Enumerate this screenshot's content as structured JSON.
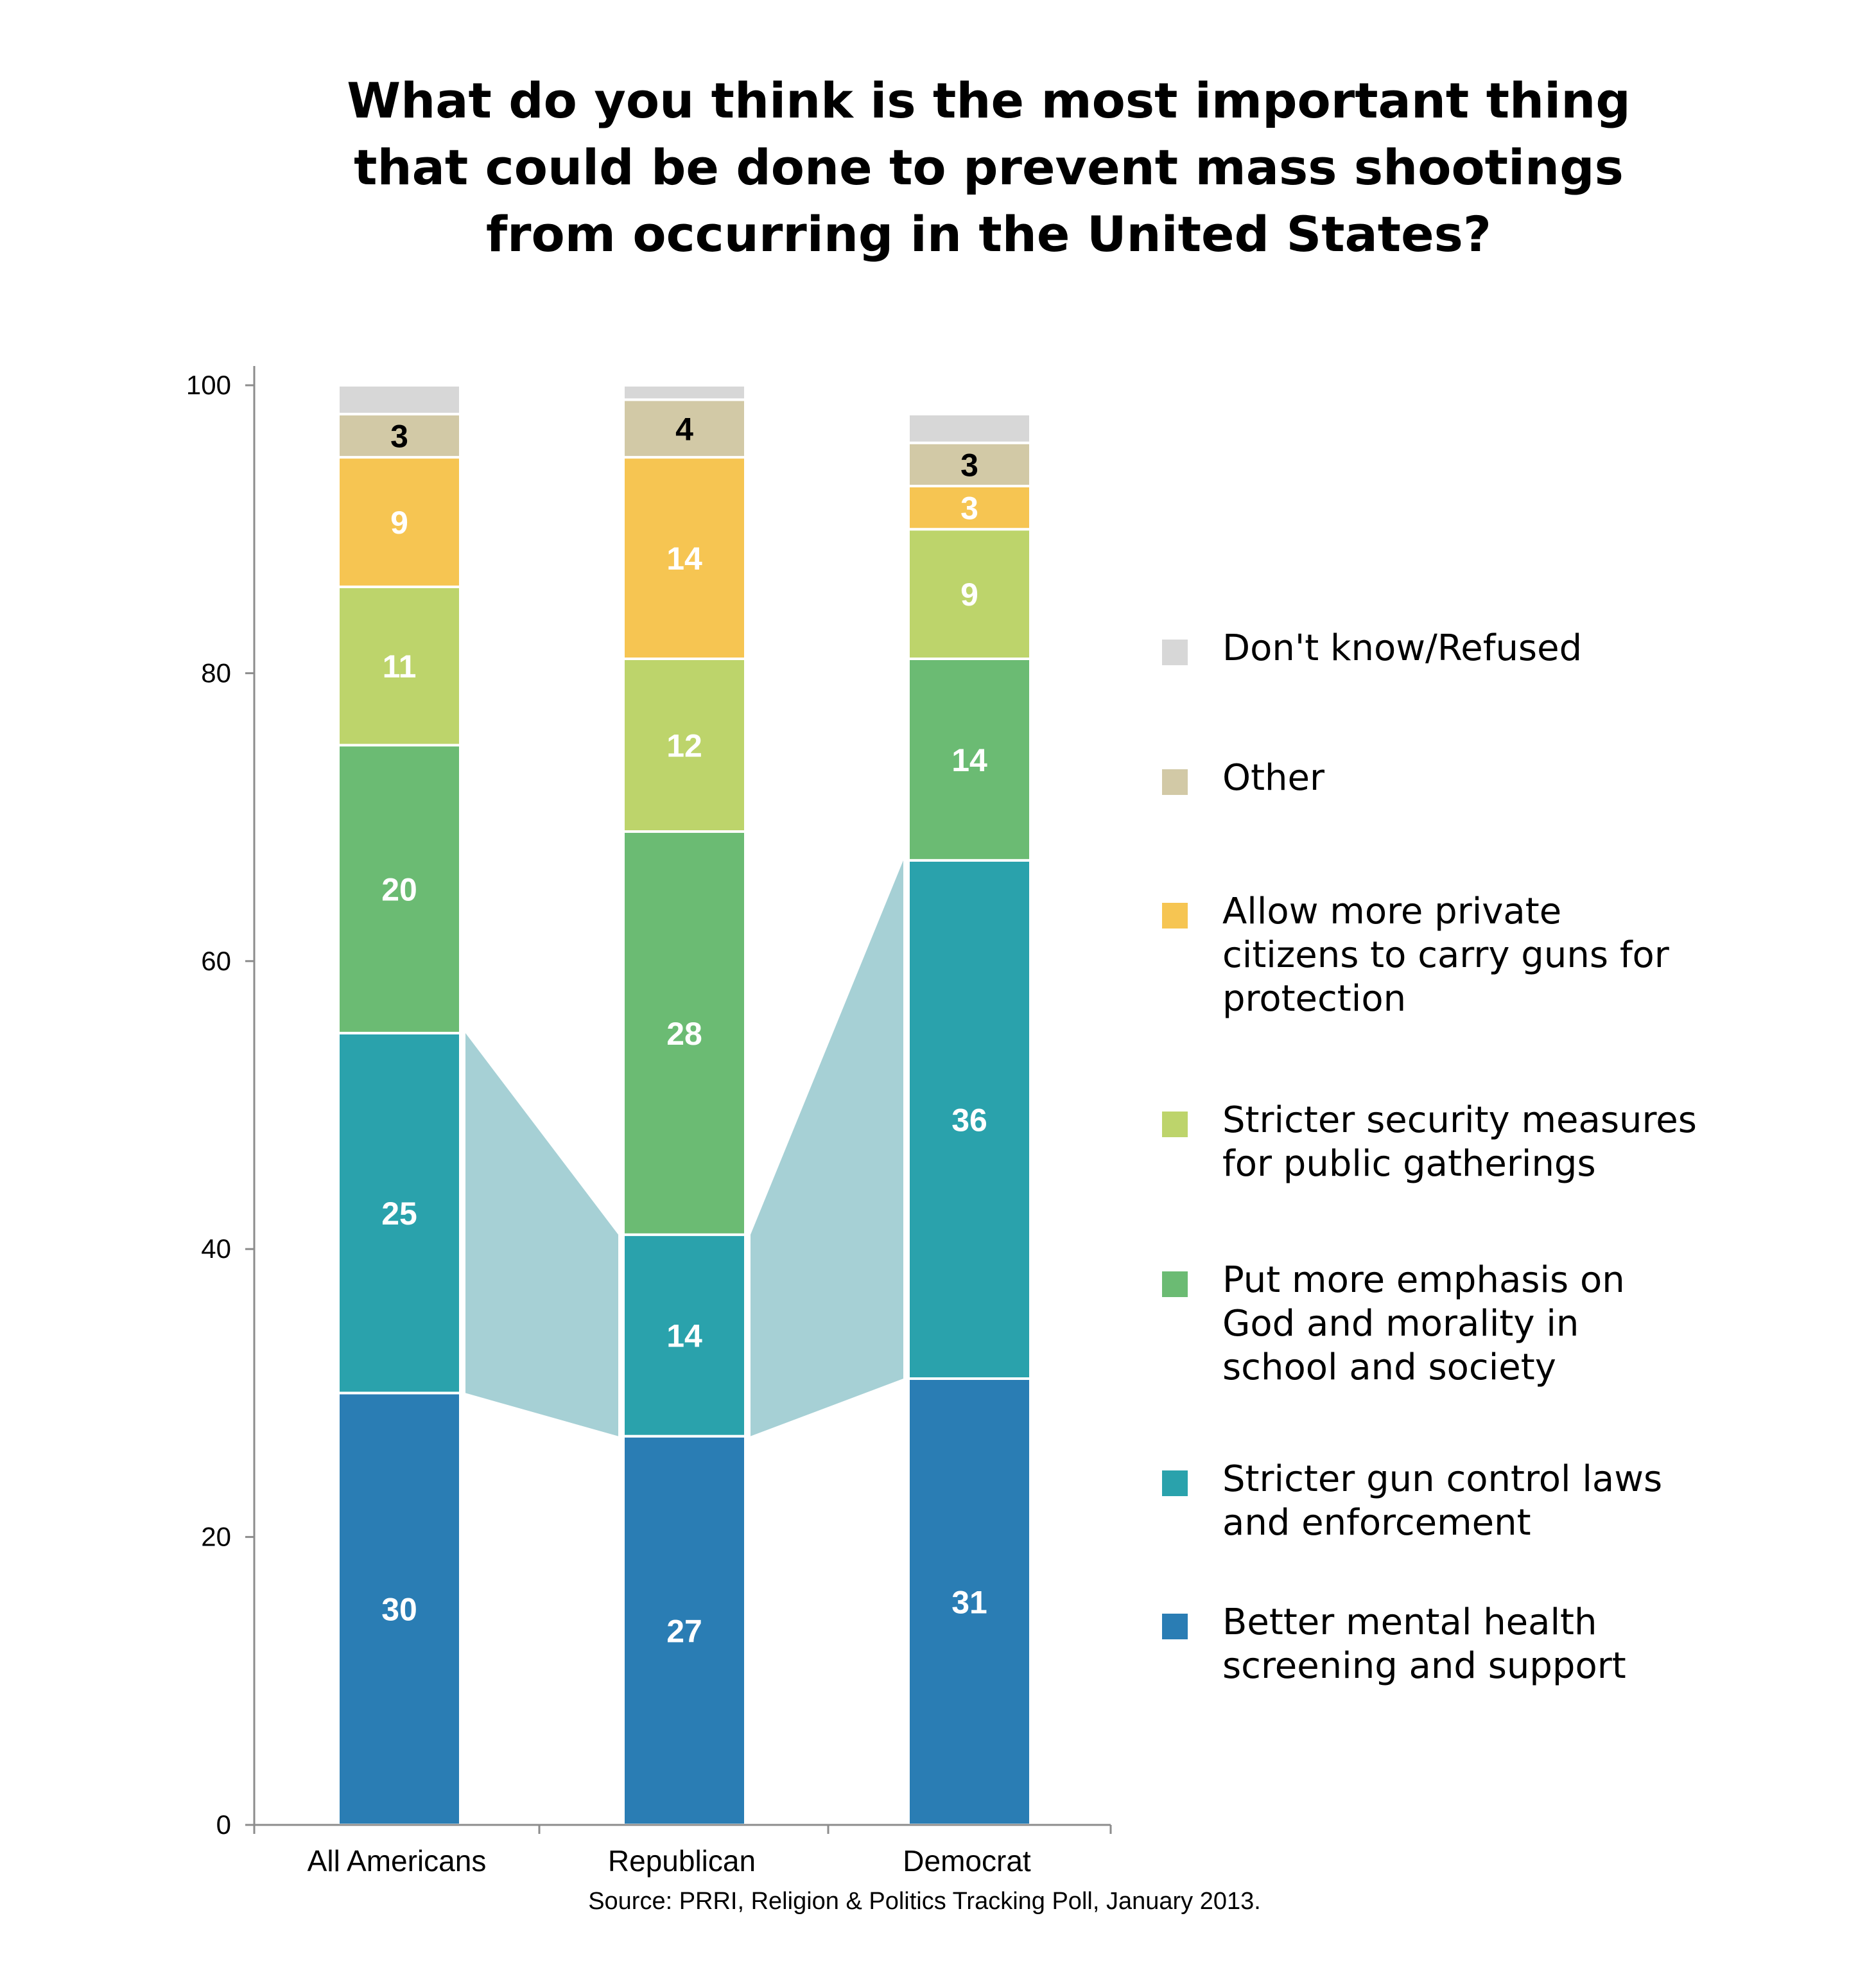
{
  "chart_data": {
    "type": "bar",
    "stacked": true,
    "title": "What do you think is the most important thing that could be done to prevent mass shootings from occurring in the United States?",
    "title_lines": [
      "What do you think is the most important thing",
      "that could be done to prevent mass shootings",
      "from occurring in the United States?"
    ],
    "categories": [
      "All Americans",
      "Republican",
      "Democrat"
    ],
    "ylim": [
      0,
      100
    ],
    "yticks": [
      0,
      20,
      40,
      60,
      80,
      100
    ],
    "xlabel": "",
    "ylabel": "",
    "grid": false,
    "legend_position": "right",
    "series": [
      {
        "name": "Better mental health screening and support",
        "color": "#2a7db4",
        "label_color": "#ffffff",
        "values": [
          30,
          27,
          31
        ]
      },
      {
        "name": "Stricter gun control laws and enforcement",
        "color": "#2aa2ac",
        "label_color": "#ffffff",
        "values": [
          25,
          14,
          36
        ]
      },
      {
        "name": "Put more emphasis on God and morality in school and society",
        "color": "#6bbb73",
        "label_color": "#ffffff",
        "values": [
          20,
          28,
          14
        ]
      },
      {
        "name": "Stricter security measures for public gatherings",
        "color": "#bdd46b",
        "label_color": "#ffffff",
        "values": [
          11,
          12,
          9
        ]
      },
      {
        "name": "Allow more private citizens to carry guns for protection",
        "color": "#f6c552",
        "label_color": "#ffffff",
        "values": [
          9,
          14,
          3
        ]
      },
      {
        "name": "Other",
        "color": "#d2c9a6",
        "label_color": "#000000",
        "values": [
          3,
          4,
          3
        ]
      },
      {
        "name": "Don't know/Refused",
        "color": "#d7d7d7",
        "label_color": "#000000",
        "values": [
          2,
          1,
          2
        ],
        "show_labels": false
      }
    ],
    "highlight_series": "Stricter gun control laws and enforcement",
    "highlight_color": "#a6d0d5",
    "source": "Source: PRRI, Religion & Politics Tracking Poll, January 2013."
  },
  "legend": [
    {
      "swatch": "#d7d7d7",
      "lines": [
        "Don't know/Refused"
      ]
    },
    {
      "swatch": "#d2c9a6",
      "lines": [
        "Other"
      ]
    },
    {
      "swatch": "#f6c552",
      "lines": [
        "Allow more private",
        "citizens to carry guns for",
        "protection"
      ]
    },
    {
      "swatch": "#bdd46b",
      "lines": [
        "Stricter security measures",
        "for public gatherings"
      ]
    },
    {
      "swatch": "#6bbb73",
      "lines": [
        "Put more emphasis on",
        "God and morality in",
        "school and society"
      ]
    },
    {
      "swatch": "#2aa2ac",
      "lines": [
        "Stricter gun control laws",
        "and enforcement"
      ]
    },
    {
      "swatch": "#2a7db4",
      "lines": [
        "Better mental health",
        "screening and support"
      ]
    }
  ]
}
